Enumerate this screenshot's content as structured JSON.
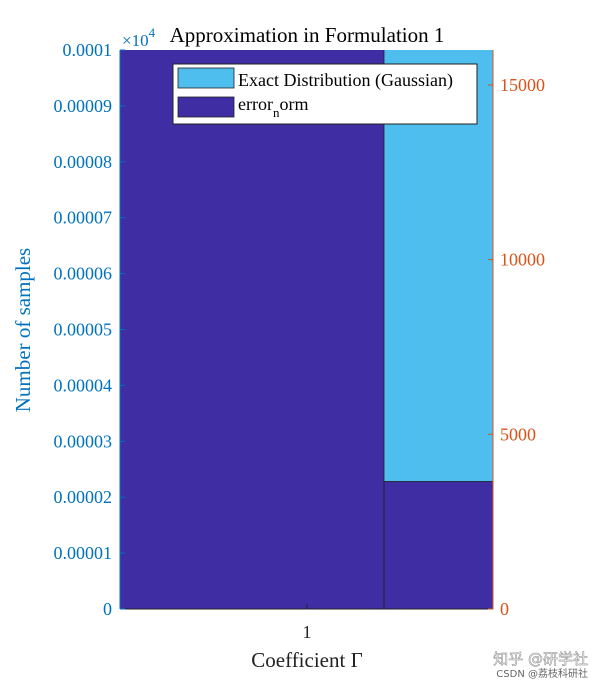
{
  "chart_data": {
    "type": "bar",
    "title": "Approximation in Formulation 1",
    "xlabel": "Coefficient Γ",
    "ylabel_left": "Number of samples",
    "x_ticks": [
      "1"
    ],
    "left_axis": {
      "ylim": [
        0,
        0.0001
      ],
      "ticks": [
        "0",
        "0.00001",
        "0.00002",
        "0.00003",
        "0.00004",
        "0.00005",
        "0.00006",
        "0.00007",
        "0.00008",
        "0.00009",
        "0.0001"
      ],
      "exponent_label": "×10",
      "exponent_power": "4",
      "color": "#0072BD"
    },
    "right_axis": {
      "ylim": [
        0,
        16000
      ],
      "ticks": [
        {
          "value": 0,
          "label": "0"
        },
        {
          "value": 5000,
          "label": "5000"
        },
        {
          "value": 10000,
          "label": "10000"
        },
        {
          "value": 15000,
          "label": "15000"
        }
      ],
      "color": "#D95319"
    },
    "series": [
      {
        "name": "error_norm",
        "axis": "left",
        "values": [
          0.0001
        ],
        "color": "#3F2DA3"
      },
      {
        "name": "Exact Distribution (Gaussian)",
        "axis": "right",
        "values": [
          16000
        ],
        "color": "#4DBEEE"
      },
      {
        "name": "error_norm",
        "axis": "right",
        "values": [
          3650
        ],
        "color": "#3F2DA3"
      }
    ],
    "legend": {
      "position": "top",
      "entries": [
        {
          "label": "Exact Distribution (Gaussian)",
          "color": "#4DBEEE"
        },
        {
          "label_main": "error",
          "label_sub": "n",
          "label_tail": "orm",
          "color": "#3F2DA3"
        }
      ]
    }
  },
  "watermark": {
    "line1": "知乎 @研学社",
    "line2": "CSDN @荔枝科研社"
  }
}
